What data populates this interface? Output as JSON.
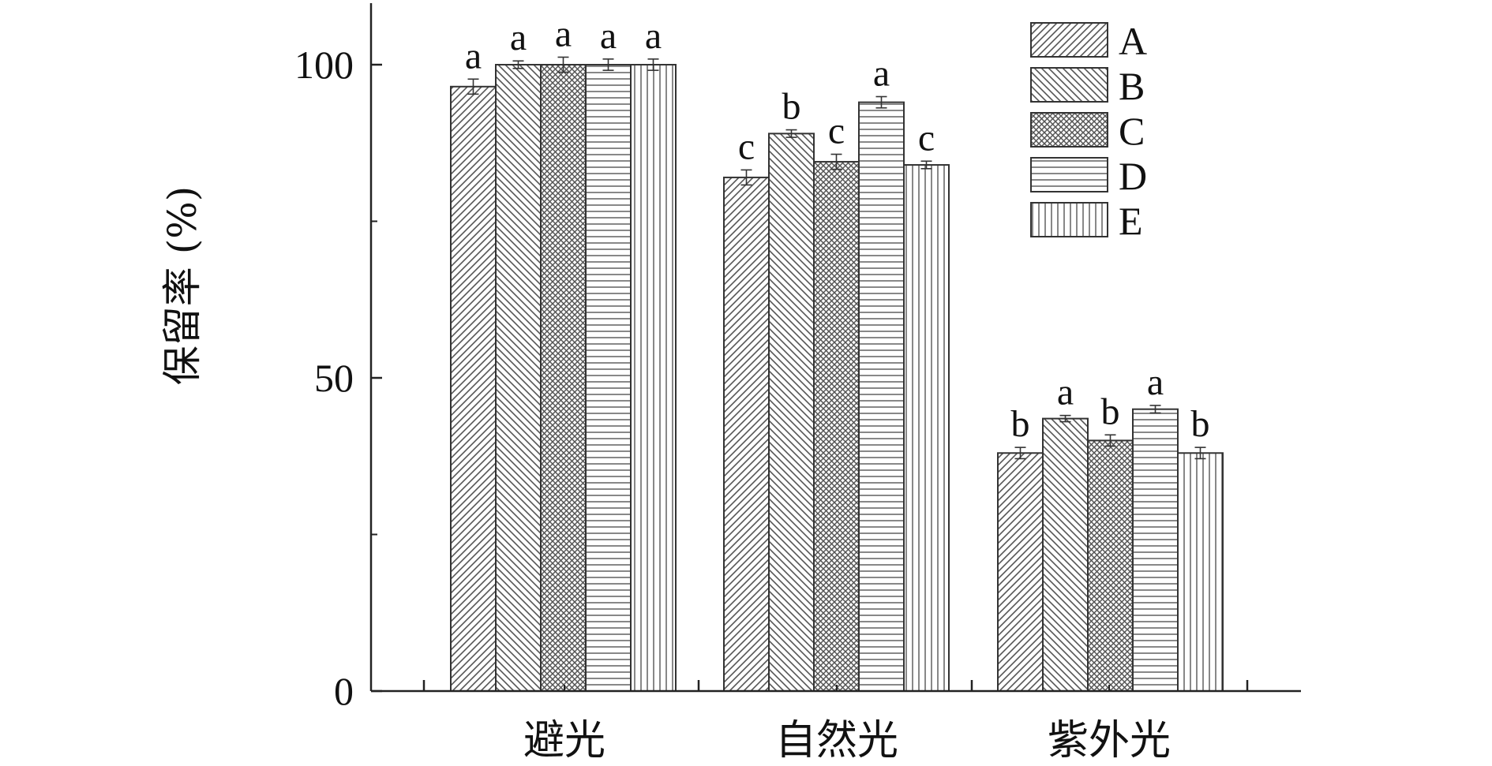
{
  "chart_data": {
    "type": "bar",
    "title": "",
    "xlabel": "",
    "ylabel": "保留率 (%)",
    "ylim": [
      0,
      100
    ],
    "yticks_major": [
      0,
      50,
      100
    ],
    "yticks_minor": [
      25,
      75
    ],
    "categories": [
      "避光",
      "自然光",
      "紫外光"
    ],
    "legend_position": "top-right",
    "series": [
      {
        "name": "A",
        "pattern": "diag-up",
        "values": [
          96.5,
          82.0,
          38.0
        ],
        "errors": [
          1.2,
          1.2,
          0.9
        ],
        "labels": [
          "a",
          "c",
          "b"
        ]
      },
      {
        "name": "B",
        "pattern": "diag-down",
        "values": [
          100.0,
          89.0,
          43.5
        ],
        "errors": [
          0.6,
          0.6,
          0.5
        ],
        "labels": [
          "a",
          "b",
          "a"
        ]
      },
      {
        "name": "C",
        "pattern": "crosshatch",
        "values": [
          100.0,
          84.5,
          40.0
        ],
        "errors": [
          1.2,
          1.2,
          0.9
        ],
        "labels": [
          "a",
          "c",
          "b"
        ]
      },
      {
        "name": "D",
        "pattern": "horizontal",
        "values": [
          100.0,
          94.0,
          45.0
        ],
        "errors": [
          0.9,
          0.9,
          0.6
        ],
        "labels": [
          "a",
          "a",
          "a"
        ]
      },
      {
        "name": "E",
        "pattern": "vertical",
        "values": [
          100.0,
          84.0,
          38.0
        ],
        "errors": [
          0.9,
          0.6,
          0.9
        ],
        "labels": [
          "a",
          "c",
          "b"
        ]
      }
    ],
    "colors": {
      "axis": "#222222",
      "bar_stroke": "#333333",
      "pattern": "#555555"
    }
  }
}
